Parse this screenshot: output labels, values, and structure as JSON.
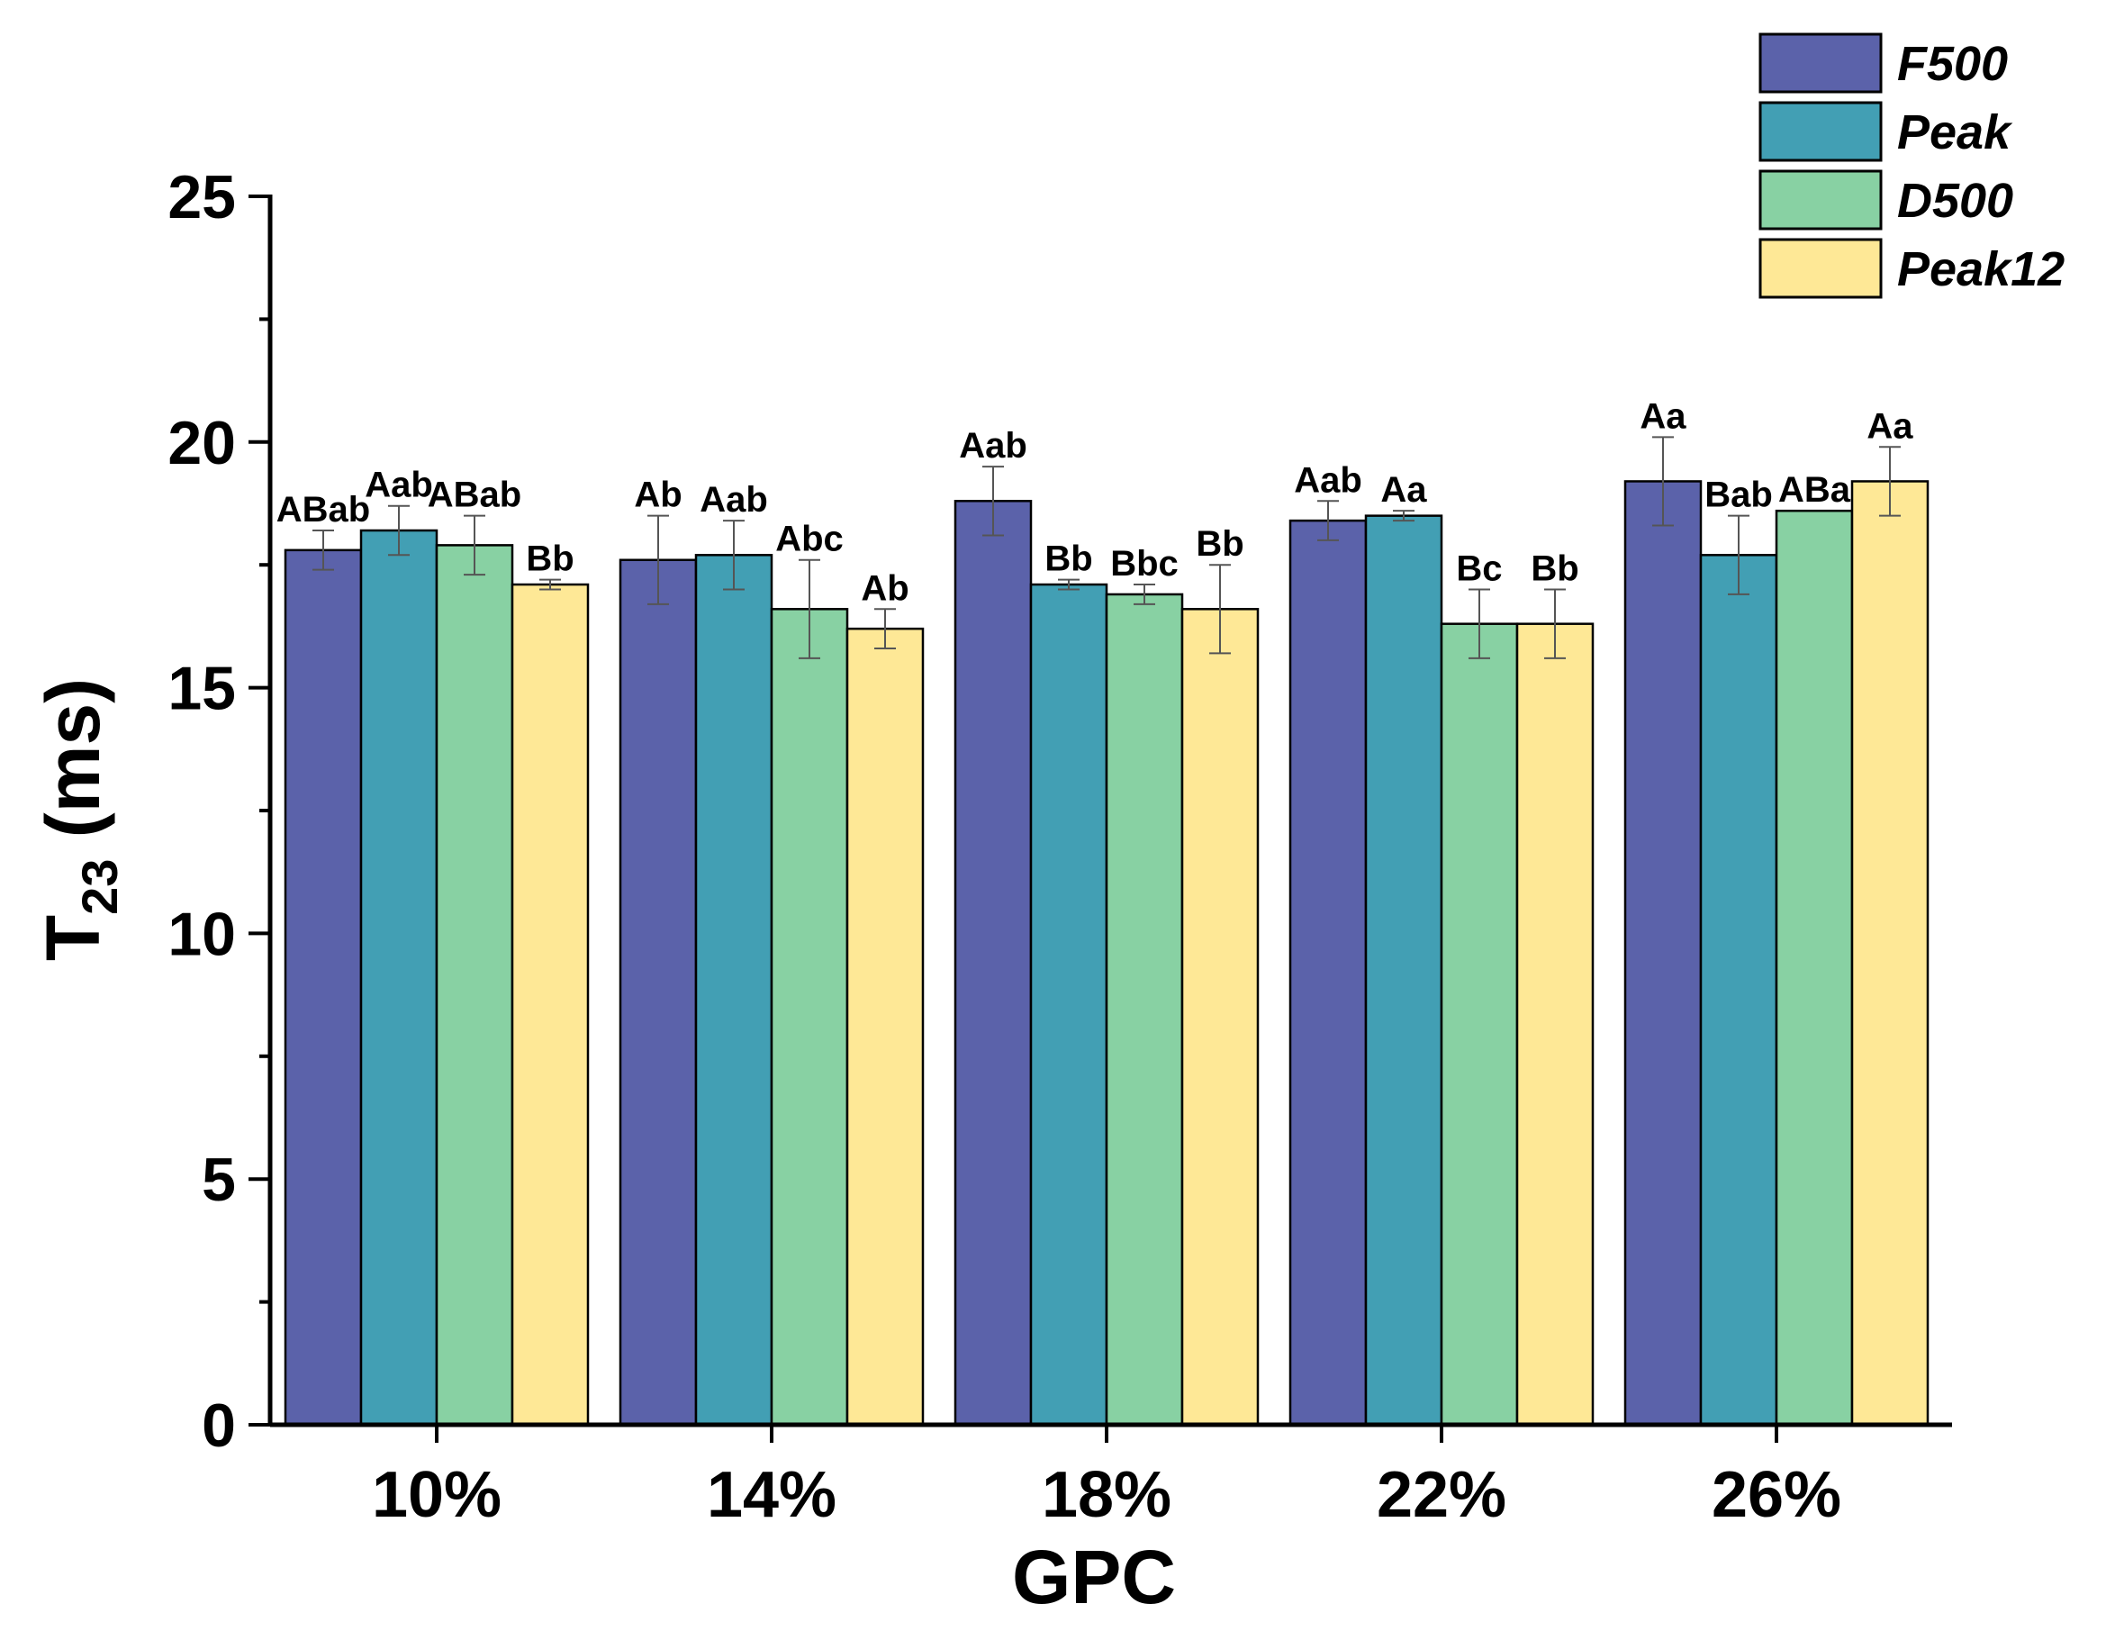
{
  "chart_data": {
    "type": "bar",
    "xlabel": "GPC",
    "ylabel_main": "T",
    "ylabel_sub": "23",
    "ylabel_unit": " (ms)",
    "ylim": [
      0,
      25
    ],
    "yticks": [
      "0",
      "5",
      "10",
      "15",
      "20",
      "25"
    ],
    "legend_position": "top-right",
    "grid": false,
    "categories": [
      "10%",
      "14%",
      "18%",
      "22%",
      "26%"
    ],
    "series": [
      {
        "name": "F500",
        "color": "#5b62aa",
        "values": [
          17.8,
          17.6,
          18.8,
          18.4,
          19.2
        ],
        "errors": [
          0.4,
          0.9,
          0.7,
          0.4,
          0.9
        ],
        "labels": [
          "ABab",
          "Ab",
          "Aab",
          "Aab",
          "Aa"
        ]
      },
      {
        "name": "Peak",
        "color": "#429fb4",
        "values": [
          18.2,
          17.7,
          17.1,
          18.5,
          17.7
        ],
        "errors": [
          0.5,
          0.7,
          0.1,
          0.1,
          0.8
        ],
        "labels": [
          "Aab",
          "Aab",
          "Bb",
          "Aa",
          "Bab"
        ]
      },
      {
        "name": "D500",
        "color": "#88d1a3",
        "values": [
          17.9,
          16.6,
          16.9,
          16.3,
          18.6
        ],
        "errors": [
          0.6,
          1.0,
          0.2,
          0.7,
          0.0
        ],
        "labels": [
          "ABab",
          "Abc",
          "Bbc",
          "Bc",
          "ABa"
        ]
      },
      {
        "name": "Peak12",
        "color": "#fee896",
        "values": [
          17.1,
          16.2,
          16.6,
          16.3,
          19.2
        ],
        "errors": [
          0.1,
          0.4,
          0.9,
          0.7,
          0.7
        ],
        "labels": [
          "Bb",
          "Ab",
          "Bb",
          "Bb",
          "Aa"
        ]
      }
    ]
  }
}
